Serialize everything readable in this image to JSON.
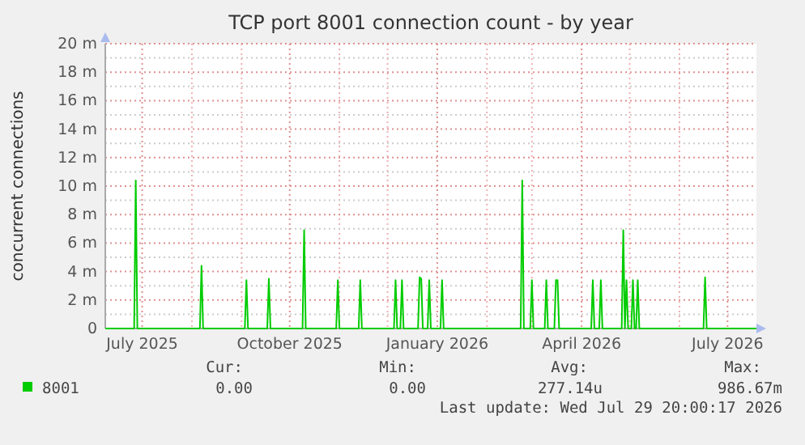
{
  "chart_data": {
    "type": "line",
    "title": "TCP port 8001 connection count - by year",
    "ylabel": "concurrent connections",
    "x": [
      "2025-06-08",
      "2025-06-26",
      "2025-06-27",
      "2025-06-28",
      "2025-08-06",
      "2025-08-07",
      "2025-08-08",
      "2025-09-03",
      "2025-09-04",
      "2025-09-05",
      "2025-09-17",
      "2025-09-18",
      "2025-09-19",
      "2025-10-09",
      "2025-10-10",
      "2025-10-11",
      "2025-10-30",
      "2025-10-31",
      "2025-11-01",
      "2025-11-13",
      "2025-11-14",
      "2025-11-15",
      "2025-12-05",
      "2025-12-06",
      "2025-12-07",
      "2025-12-09",
      "2025-12-10",
      "2025-12-11",
      "2025-12-20",
      "2025-12-21",
      "2025-12-22",
      "2025-12-23",
      "2025-12-26",
      "2025-12-27",
      "2025-12-28",
      "2026-01-03",
      "2026-01-04",
      "2026-01-05",
      "2026-02-22",
      "2026-02-23",
      "2026-02-24",
      "2026-02-28",
      "2026-03-01",
      "2026-03-02",
      "2026-03-09",
      "2026-03-10",
      "2026-03-11",
      "2026-03-15",
      "2026-03-16",
      "2026-03-17",
      "2026-03-18",
      "2026-04-07",
      "2026-04-08",
      "2026-04-09",
      "2026-04-12",
      "2026-04-13",
      "2026-04-14",
      "2026-04-26",
      "2026-04-27",
      "2026-04-28",
      "2026-04-29",
      "2026-04-30",
      "2026-05-02",
      "2026-05-03",
      "2026-05-04",
      "2026-05-05",
      "2026-05-06",
      "2026-05-07",
      "2026-06-16",
      "2026-06-17",
      "2026-06-18",
      "2026-07-19"
    ],
    "series": [
      {
        "name": "8001",
        "color": "#00cc00",
        "values": [
          0,
          0,
          10.4,
          0,
          0,
          4.4,
          0,
          0,
          3.4,
          0,
          0,
          3.5,
          0,
          0,
          6.9,
          0,
          0,
          3.4,
          0,
          0,
          3.4,
          0,
          0,
          3.4,
          0,
          0,
          3.4,
          0,
          0,
          3.6,
          3.5,
          0,
          0,
          3.4,
          0,
          0,
          3.4,
          0,
          0,
          10.4,
          0,
          0,
          3.4,
          0,
          0,
          3.4,
          0,
          0,
          3.4,
          3.4,
          0,
          0,
          3.4,
          0,
          0,
          3.4,
          0,
          0,
          6.9,
          0,
          3.4,
          0,
          0,
          3.4,
          0,
          0,
          3.4,
          0,
          0,
          3.6,
          0,
          0
        ]
      }
    ],
    "xlim": [
      "2025-06-08",
      "2026-07-19"
    ],
    "xticks": [
      {
        "value": "2025-07-01",
        "label": "July 2025"
      },
      {
        "value": "2025-08-01",
        "label": null
      },
      {
        "value": "2025-09-01",
        "label": null
      },
      {
        "value": "2025-10-01",
        "label": "October 2025"
      },
      {
        "value": "2025-11-01",
        "label": null
      },
      {
        "value": "2025-12-01",
        "label": null
      },
      {
        "value": "2026-01-01",
        "label": "January 2026"
      },
      {
        "value": "2026-02-01",
        "label": null
      },
      {
        "value": "2026-03-01",
        "label": null
      },
      {
        "value": "2026-04-01",
        "label": "April 2026"
      },
      {
        "value": "2026-05-01",
        "label": null
      },
      {
        "value": "2026-06-01",
        "label": null
      },
      {
        "value": "2026-07-01",
        "label": "July 2026"
      }
    ],
    "ylim": [
      0,
      20
    ],
    "yticks": [
      0,
      {
        "value": 1,
        "label": null
      },
      {
        "value": 2,
        "label": "2 m"
      },
      {
        "value": 3,
        "label": null
      },
      {
        "value": 4,
        "label": "4 m"
      },
      {
        "value": 5,
        "label": null
      },
      {
        "value": 6,
        "label": "6 m"
      },
      {
        "value": 7,
        "label": null
      },
      {
        "value": 8,
        "label": "8 m"
      },
      {
        "value": 9,
        "label": null
      },
      {
        "value": 10,
        "label": "10 m"
      },
      {
        "value": 11,
        "label": null
      },
      {
        "value": 12,
        "label": "12 m"
      },
      {
        "value": 13,
        "label": null
      },
      {
        "value": 14,
        "label": "14 m"
      },
      {
        "value": 15,
        "label": null
      },
      {
        "value": 16,
        "label": "16 m"
      },
      {
        "value": 17,
        "label": null
      },
      {
        "value": 18,
        "label": "18 m"
      },
      {
        "value": 19,
        "label": null
      },
      {
        "value": 20,
        "label": "20 m"
      }
    ],
    "grid": true,
    "legend": "bottom",
    "marker": "none",
    "line_style": "solid",
    "annotations": [
      "Cur:",
      "Min:",
      "Avg:",
      "Max:",
      "0.00",
      "0.00",
      "277.14u",
      "986.67m",
      "Last update: Wed Jul 29 20:00:17 2026"
    ]
  }
}
